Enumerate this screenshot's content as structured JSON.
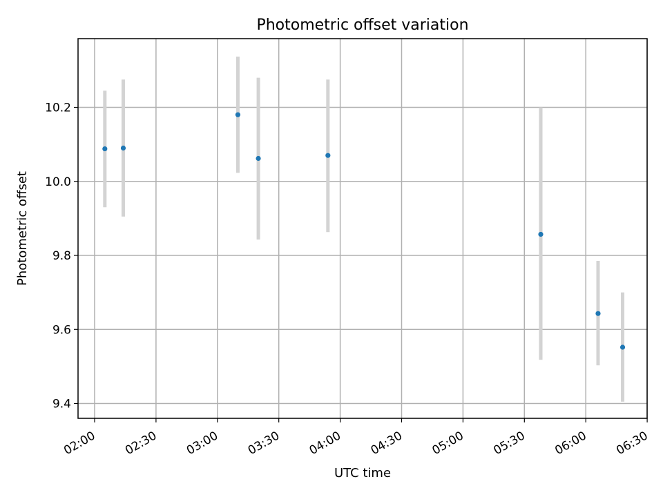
{
  "chart_data": {
    "type": "scatter",
    "title": "Photometric offset variation",
    "xlabel": "UTC time",
    "ylabel": "Photometric offset",
    "x_tick_labels": [
      "02:00",
      "02:30",
      "03:00",
      "03:30",
      "04:00",
      "04:30",
      "05:00",
      "05:30",
      "06:00",
      "06:30"
    ],
    "x_tick_minutes": [
      120,
      150,
      180,
      210,
      240,
      270,
      300,
      330,
      360,
      390
    ],
    "y_ticks": [
      9.4,
      9.6,
      9.8,
      10.0,
      10.2
    ],
    "y_tick_labels": [
      "9.4",
      "9.6",
      "9.8",
      "10.0",
      "10.2"
    ],
    "xlim": [
      "02:00",
      "06:30"
    ],
    "ylim": [
      9.36,
      10.38
    ],
    "grid": true,
    "point_color": "#1f77b4",
    "errorbar_color": "#d3d3d3",
    "points": [
      {
        "time": "02:05",
        "y": 10.088,
        "err_low": 9.93,
        "err_high": 10.245
      },
      {
        "time": "02:14",
        "y": 10.09,
        "err_low": 9.905,
        "err_high": 10.275
      },
      {
        "time": "03:10",
        "y": 10.18,
        "err_low": 10.023,
        "err_high": 10.337
      },
      {
        "time": "03:20",
        "y": 10.062,
        "err_low": 9.843,
        "err_high": 10.28
      },
      {
        "time": "03:54",
        "y": 10.07,
        "err_low": 9.863,
        "err_high": 10.275
      },
      {
        "time": "05:38",
        "y": 9.857,
        "err_low": 9.518,
        "err_high": 10.2
      },
      {
        "time": "06:06",
        "y": 9.643,
        "err_low": 9.503,
        "err_high": 9.785
      },
      {
        "time": "06:18",
        "y": 9.552,
        "err_low": 9.405,
        "err_high": 9.7
      }
    ]
  }
}
